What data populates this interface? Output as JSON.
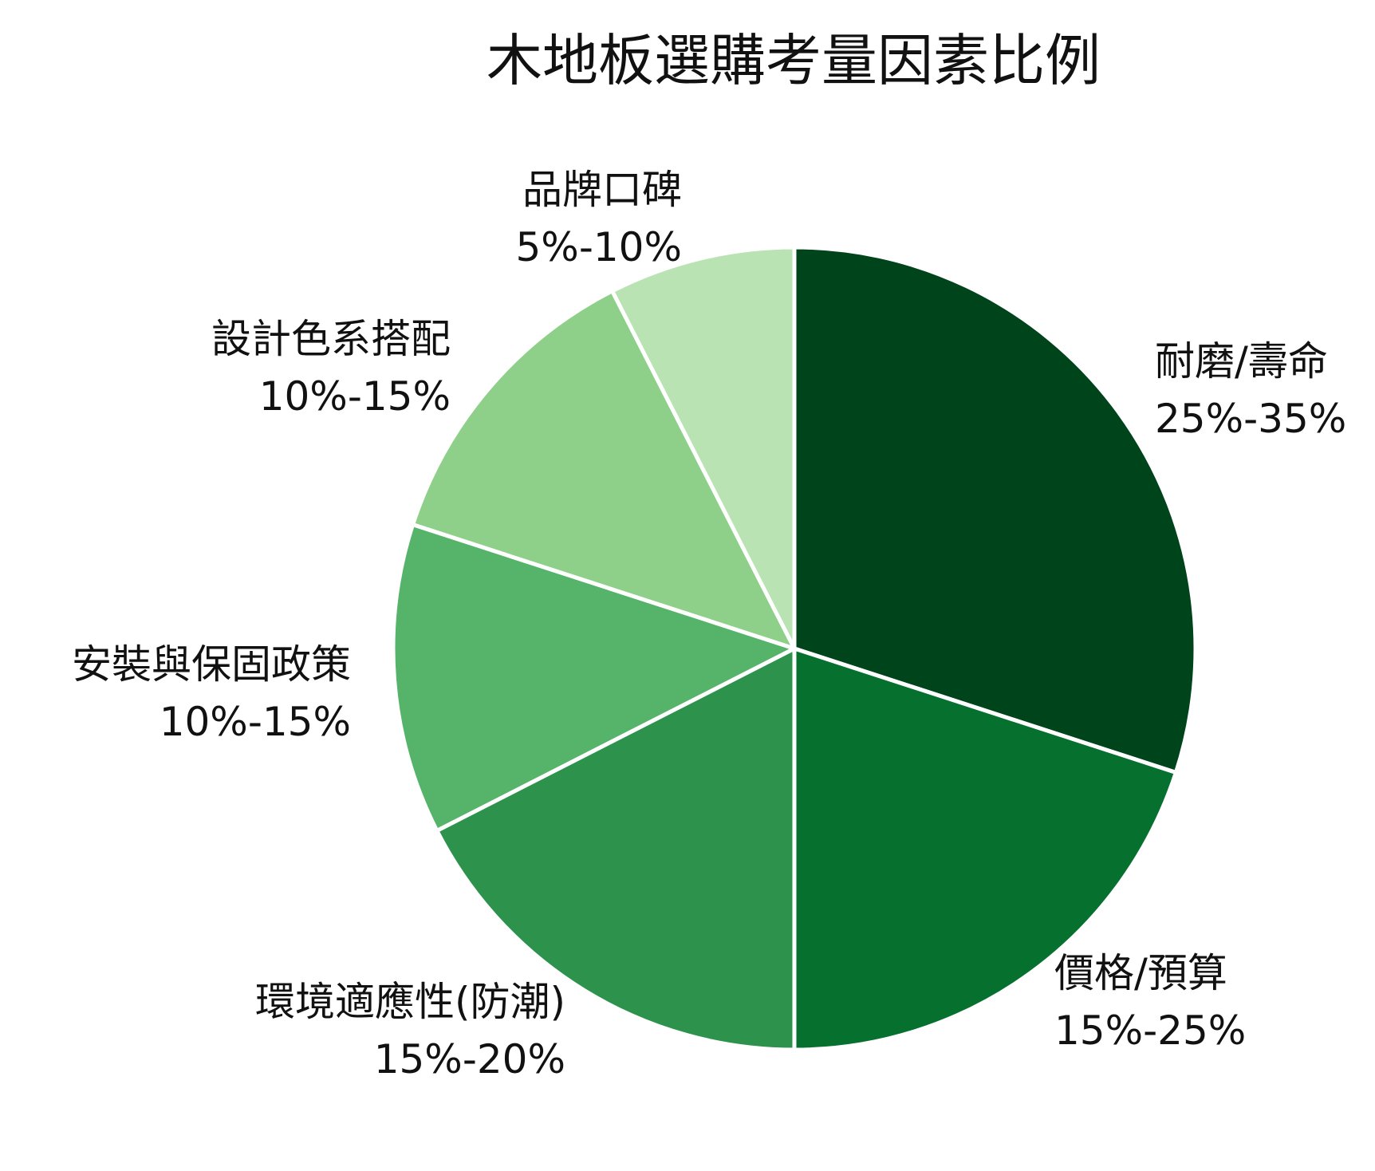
{
  "chart_data": {
    "type": "pie",
    "title": "木地板選購考量因素比例",
    "start": "12 o'clock, clockwise",
    "slices": [
      {
        "name": "耐磨/壽命",
        "range": "25%-35%",
        "share": 30,
        "color": "#00441b"
      },
      {
        "name": "價格/預算",
        "range": "15%-25%",
        "share": 20,
        "color": "#06702f"
      },
      {
        "name": "環境適應性(防潮)",
        "range": "15%-20%",
        "share": 17.5,
        "color": "#2d934c"
      },
      {
        "name": "安裝與保固政策",
        "range": "10%-15%",
        "share": 12.5,
        "color": "#56b46a"
      },
      {
        "name": "設計色系搭配",
        "range": "10%-15%",
        "share": 12.5,
        "color": "#8ecf89"
      },
      {
        "name": "品牌口碑",
        "range": "5%-10%",
        "share": 7.5,
        "color": "#b9e3b3"
      }
    ]
  }
}
